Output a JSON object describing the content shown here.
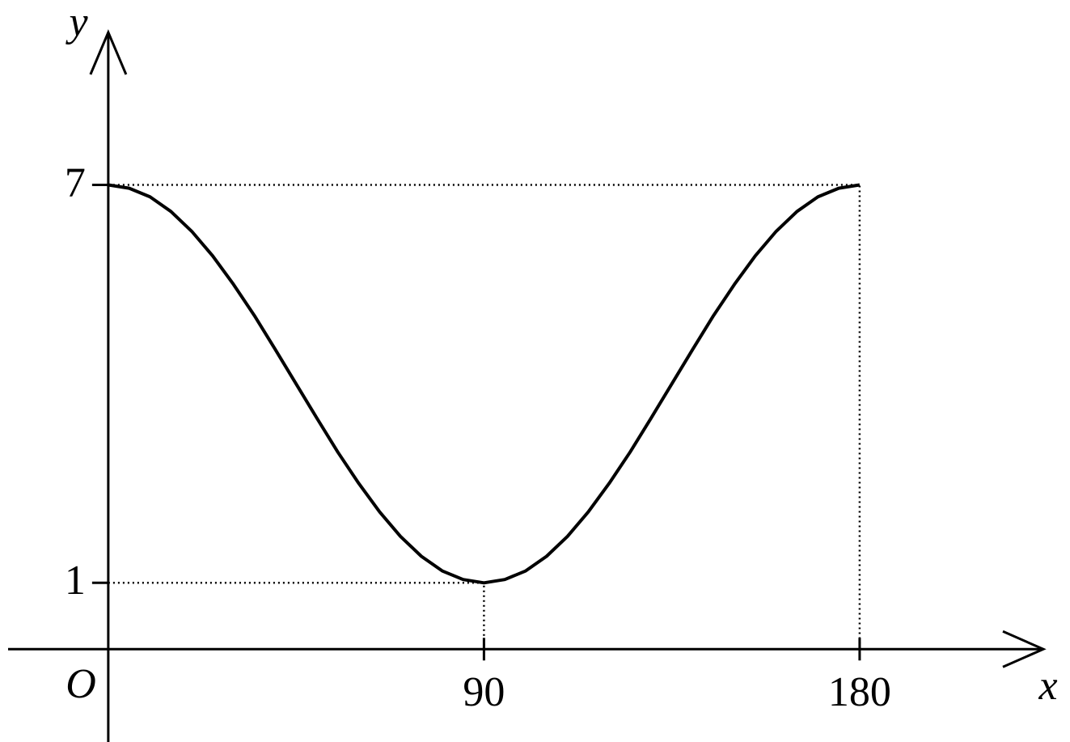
{
  "chart_data": {
    "type": "line",
    "x_label": "x",
    "y_label": "y",
    "origin_label": "O",
    "x": [
      0,
      5,
      10,
      15,
      20,
      25,
      30,
      35,
      40,
      45,
      50,
      55,
      60,
      65,
      70,
      75,
      80,
      85,
      90,
      95,
      100,
      105,
      110,
      115,
      120,
      125,
      130,
      135,
      140,
      145,
      150,
      155,
      160,
      165,
      170,
      175,
      180
    ],
    "series": [
      {
        "color": "#000000",
        "values": [
          7,
          6.95,
          6.82,
          6.6,
          6.3,
          5.93,
          5.5,
          5.03,
          4.52,
          4,
          3.48,
          2.97,
          2.5,
          2.07,
          1.7,
          1.4,
          1.18,
          1.05,
          1,
          1.05,
          1.18,
          1.4,
          1.7,
          2.07,
          2.5,
          2.97,
          3.48,
          4,
          4.52,
          5.03,
          5.5,
          5.93,
          6.3,
          6.6,
          6.82,
          6.95,
          7
        ]
      }
    ],
    "xlim": [
      -24,
      224
    ],
    "ylim": [
      -1.4,
      9.3
    ],
    "xticks": [
      90,
      180
    ],
    "yticks": [
      1,
      7
    ]
  }
}
